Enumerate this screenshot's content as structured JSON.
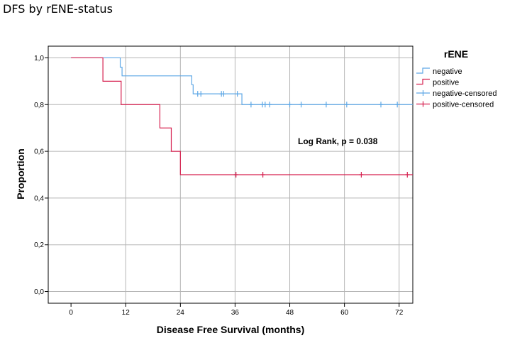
{
  "page": {
    "title": "DFS by rENE-status"
  },
  "chart_data": {
    "type": "line",
    "step": true,
    "xlabel": "Disease Free Survival (months)",
    "ylabel": "Proportion",
    "xlim": [
      -5,
      75
    ],
    "ylim": [
      -0.05,
      1.05
    ],
    "xticks": [
      0,
      12,
      24,
      36,
      48,
      60,
      72
    ],
    "yticks": [
      0.0,
      0.2,
      0.4,
      0.6,
      0.8,
      1.0
    ],
    "ytick_labels": [
      "0,0",
      "0,2",
      "0,4",
      "0,6",
      "0,8",
      "1,0"
    ],
    "grid": "vertical and horizontal at ticks",
    "legend": {
      "title": "rENE",
      "position": "top-right outside",
      "entries": [
        "negative",
        "positive",
        "negative-censored",
        "positive-censored"
      ]
    },
    "annotation": "Log Rank, p = 0.038",
    "colors": {
      "negative": "#5fa8e6",
      "positive": "#d6204f"
    },
    "series": [
      {
        "name": "negative",
        "steps": [
          [
            0,
            1.0
          ],
          [
            10.8,
            0.96
          ],
          [
            11.2,
            0.923
          ],
          [
            26.5,
            0.885
          ],
          [
            26.8,
            0.846
          ],
          [
            37.5,
            0.8
          ],
          [
            75,
            0.8
          ]
        ],
        "censored": [
          [
            27.8,
            0.846
          ],
          [
            28.5,
            0.846
          ],
          [
            33.0,
            0.846
          ],
          [
            33.5,
            0.846
          ],
          [
            36.5,
            0.846
          ],
          [
            39.5,
            0.8
          ],
          [
            42.0,
            0.8
          ],
          [
            42.6,
            0.8
          ],
          [
            43.6,
            0.8
          ],
          [
            48.0,
            0.8
          ],
          [
            50.5,
            0.8
          ],
          [
            56.0,
            0.8
          ],
          [
            60.5,
            0.8
          ],
          [
            68.0,
            0.8
          ],
          [
            71.6,
            0.8
          ]
        ]
      },
      {
        "name": "positive",
        "steps": [
          [
            0,
            1.0
          ],
          [
            7,
            0.9
          ],
          [
            11,
            0.8
          ],
          [
            19.5,
            0.7
          ],
          [
            22,
            0.6
          ],
          [
            24,
            0.5
          ],
          [
            75,
            0.5
          ]
        ],
        "censored": [
          [
            36.2,
            0.5
          ],
          [
            42.1,
            0.5
          ],
          [
            63.7,
            0.5
          ],
          [
            73.8,
            0.5
          ]
        ]
      }
    ]
  }
}
